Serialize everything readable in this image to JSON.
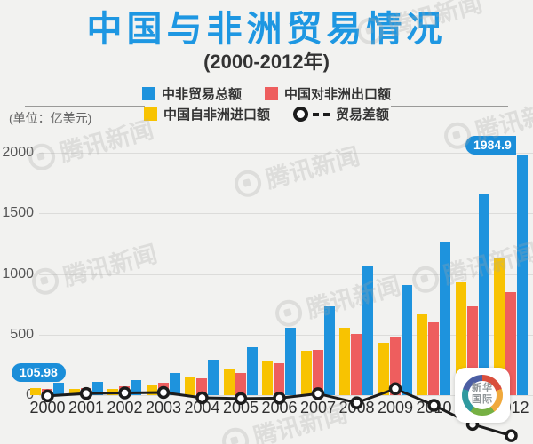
{
  "title": "中国与非洲贸易情况",
  "subtitle": "(2000-2012年)",
  "unit_label": "(单位：亿美元)",
  "legend": [
    {
      "label": "中非贸易总额",
      "color": "#1e93dd",
      "type": "bar"
    },
    {
      "label": "中国对非洲出口额",
      "color": "#ee5e5e",
      "type": "bar"
    },
    {
      "label": "中国自非洲进口额",
      "color": "#f8c301",
      "type": "bar"
    },
    {
      "label": "贸易差额",
      "color": "#1c1c1c",
      "type": "line"
    }
  ],
  "annotations": {
    "first_total": "105.98",
    "last_total": "1984.9"
  },
  "watermark": {
    "text": "腾讯新闻"
  },
  "logo": {
    "line1": "新华",
    "line2": "国际"
  },
  "chart_data": {
    "type": "bar",
    "title": "中国与非洲贸易情况 (2000-2012年)",
    "unit": "亿美元",
    "categories": [
      "2000",
      "2001",
      "2002",
      "2003",
      "2004",
      "2005",
      "2006",
      "2007",
      "2008",
      "2009",
      "2010",
      "2011",
      "2012"
    ],
    "series": [
      {
        "name": "中非贸易总额",
        "type": "bar",
        "color": "#1e93dd",
        "values": [
          105.98,
          108.4,
          123.9,
          185.5,
          294.6,
          397.4,
          554.6,
          735.7,
          1068.3,
          910.7,
          1269.1,
          1663.1,
          1984.9
        ]
      },
      {
        "name": "中国对非洲出口额",
        "type": "bar",
        "color": "#ee5e5e",
        "values": [
          50.4,
          60.0,
          69.6,
          101.8,
          138.2,
          186.8,
          266.9,
          372.9,
          508.0,
          477.3,
          599.3,
          731.1,
          853.1
        ]
      },
      {
        "name": "中国自非洲进口额",
        "type": "bar",
        "color": "#f8c301",
        "values": [
          55.6,
          48.4,
          54.3,
          83.7,
          156.4,
          210.6,
          287.7,
          362.8,
          560.3,
          433.4,
          669.8,
          932.0,
          1131.8
        ]
      },
      {
        "name": "贸易差额",
        "type": "line",
        "color": "#1c1c1c",
        "values": [
          -5.2,
          11.6,
          15.3,
          18.1,
          -18.2,
          -23.8,
          -20.8,
          10.1,
          -52.3,
          43.9,
          -70.5,
          -200.9,
          -278.7
        ]
      }
    ],
    "ylim": [
      0,
      2000
    ],
    "yticks": [
      0,
      500,
      1000,
      1500,
      2000
    ],
    "grid": true,
    "legend_position": "top",
    "bar_group_order": [
      "中国自非洲进口额",
      "中国对非洲出口额",
      "中非贸易总额"
    ]
  }
}
